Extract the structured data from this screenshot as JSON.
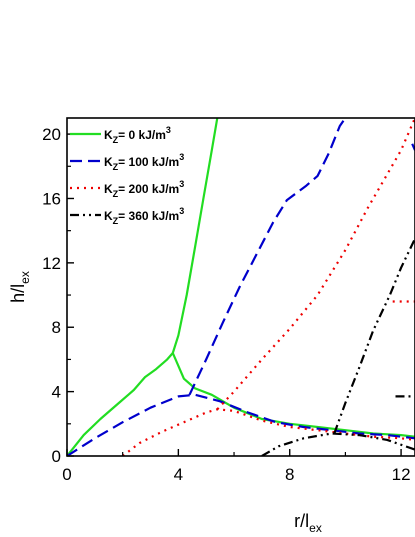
{
  "chart_data": {
    "type": "line",
    "xlabel_main": "r/l",
    "xlabel_sub": "ex",
    "ylabel_main": "h/l",
    "ylabel_sub": "ex",
    "xlim": [
      0,
      12.5
    ],
    "ylim": [
      0,
      21
    ],
    "xticks": [
      0,
      4,
      8,
      12
    ],
    "xtick_labels": [
      "0",
      "4",
      "8",
      "12"
    ],
    "yticks": [
      0,
      4,
      8,
      12,
      16,
      20
    ],
    "ytick_labels": [
      "0",
      "4",
      "8",
      "12",
      "16",
      "20"
    ],
    "grid": false,
    "legend_position": "top-left",
    "series": [
      {
        "name": "K",
        "name_sub": "Z",
        "name_tail": "= 0 kJ/m",
        "name_sup": "3",
        "color": "#22dd22",
        "dash": "solid",
        "segments": [
          [
            [
              0,
              0
            ],
            [
              0.6,
              1.3
            ],
            [
              1.2,
              2.3
            ],
            [
              1.8,
              3.2
            ],
            [
              2.4,
              4.1
            ],
            [
              2.8,
              4.9
            ],
            [
              3.2,
              5.4
            ],
            [
              3.6,
              6.0
            ],
            [
              3.8,
              6.4
            ],
            [
              4.0,
              7.5
            ],
            [
              4.3,
              10.0
            ],
            [
              4.6,
              13.0
            ],
            [
              4.9,
              16.0
            ],
            [
              5.2,
              19.0
            ],
            [
              5.4,
              21.0
            ]
          ],
          [
            [
              3.8,
              6.4
            ],
            [
              4.2,
              4.8
            ],
            [
              4.6,
              4.2
            ],
            [
              5.2,
              3.8
            ],
            [
              6.0,
              3.0
            ],
            [
              7.0,
              2.3
            ],
            [
              8.0,
              2.0
            ],
            [
              9.0,
              1.8
            ],
            [
              10.0,
              1.6
            ],
            [
              11.0,
              1.4
            ],
            [
              12.0,
              1.3
            ],
            [
              12.5,
              1.2
            ]
          ]
        ]
      },
      {
        "name": "K",
        "name_sub": "Z",
        "name_tail": "= 100 kJ/m",
        "name_sup": "3",
        "color": "#0000cc",
        "dash": "long",
        "segments": [
          [
            [
              0,
              0
            ],
            [
              1.0,
              1.1
            ],
            [
              2.0,
              2.1
            ],
            [
              3.0,
              3.0
            ],
            [
              4.0,
              3.7
            ],
            [
              4.6,
              3.8
            ],
            [
              5.5,
              3.4
            ],
            [
              6.5,
              2.7
            ],
            [
              7.5,
              2.1
            ],
            [
              8.5,
              1.8
            ],
            [
              9.5,
              1.6
            ],
            [
              10.5,
              1.4
            ],
            [
              11.5,
              1.3
            ],
            [
              12.5,
              1.1
            ]
          ],
          [
            [
              4.4,
              3.8
            ],
            [
              5.0,
              6.0
            ],
            [
              5.6,
              8.3
            ],
            [
              6.2,
              10.5
            ],
            [
              6.8,
              12.5
            ],
            [
              7.4,
              14.5
            ],
            [
              7.9,
              15.9
            ],
            [
              8.6,
              16.8
            ],
            [
              9.0,
              17.4
            ],
            [
              9.4,
              18.8
            ],
            [
              9.8,
              20.5
            ],
            [
              10.0,
              21.0
            ]
          ],
          [
            [
              12.4,
              19.4
            ],
            [
              12.5,
              19.0
            ]
          ]
        ]
      },
      {
        "name": "K",
        "name_sub": "Z",
        "name_tail": "= 200 kJ/m",
        "name_sup": "3",
        "color": "#ee0000",
        "dash": "dot",
        "segments": [
          [
            [
              2.0,
              0
            ],
            [
              2.6,
              0.8
            ],
            [
              3.4,
              1.5
            ],
            [
              4.2,
              2.1
            ],
            [
              5.0,
              2.7
            ],
            [
              5.4,
              2.9
            ],
            [
              6.0,
              2.8
            ],
            [
              7.0,
              2.2
            ],
            [
              8.0,
              1.8
            ],
            [
              9.0,
              1.6
            ],
            [
              10.0,
              1.4
            ],
            [
              11.0,
              1.2
            ],
            [
              12.0,
              1.1
            ],
            [
              12.5,
              1.0
            ]
          ],
          [
            [
              5.4,
              2.9
            ],
            [
              6.0,
              4.0
            ],
            [
              7.0,
              6.0
            ],
            [
              8.0,
              7.9
            ],
            [
              9.0,
              10.0
            ],
            [
              10.0,
              12.8
            ],
            [
              10.8,
              15.4
            ],
            [
              11.5,
              17.5
            ],
            [
              12.0,
              19.0
            ],
            [
              12.5,
              21.0
            ]
          ],
          [
            [
              11.7,
              9.6
            ],
            [
              12.5,
              9.6
            ]
          ]
        ]
      },
      {
        "name": "K",
        "name_sub": "Z",
        "name_tail": "= 360 kJ/m",
        "name_sup": "3",
        "color": "#000000",
        "dash": "dashdotdot",
        "segments": [
          [
            [
              7.0,
              0
            ],
            [
              7.6,
              0.6
            ],
            [
              8.5,
              1.1
            ],
            [
              9.5,
              1.4
            ],
            [
              10.5,
              1.3
            ],
            [
              11.5,
              1.0
            ],
            [
              12.5,
              0.4
            ]
          ],
          [
            [
              9.6,
              1.4
            ],
            [
              10.0,
              3.3
            ],
            [
              10.5,
              5.5
            ],
            [
              11.0,
              7.8
            ],
            [
              11.6,
              10.0
            ],
            [
              12.0,
              11.7
            ],
            [
              12.5,
              13.5
            ]
          ],
          [
            [
              11.8,
              3.7
            ],
            [
              12.5,
              3.7
            ]
          ]
        ]
      }
    ]
  }
}
